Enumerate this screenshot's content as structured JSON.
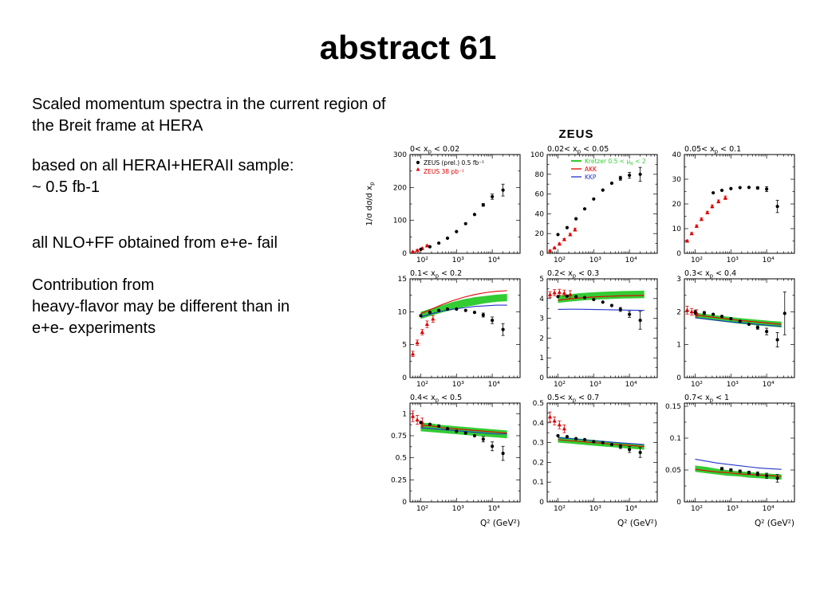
{
  "slide": {
    "title": "abstract 61",
    "blocks": [
      {
        "lines": [
          "Scaled momentum spectra in the current region of",
          "the Breit frame at HERA"
        ]
      },
      {
        "lines": [
          "based on all HERAI+HERAII sample:",
          "~ 0.5 fb-1"
        ]
      },
      {
        "lines": [
          "all NLO+FF obtained from e+e- fail"
        ]
      },
      {
        "lines": [
          "Contribution from",
          "heavy-flavor may be different than in",
          "e+e- experiments"
        ]
      }
    ]
  },
  "figure": {
    "title": "ZEUS",
    "ylabel": "1/σ dσ/d x_p",
    "xlabel": "Q² (GeV²)",
    "xlim": [
      50,
      60000
    ],
    "xticks": [
      100,
      1000,
      10000
    ],
    "xtick_labels": [
      "10²",
      "10³",
      "10⁴"
    ],
    "legend_data": [
      "ZEUS  (prel.) 0.5 fb⁻¹",
      "ZEUS 38 pb⁻¹"
    ],
    "legend_theory": [
      "Kretzer 0.5 < μ_R < 2",
      "AKK",
      "KKP"
    ],
    "colors": {
      "zeus": "#000000",
      "zeus38": "#dd0000",
      "kretzer": "#33cc33",
      "akk": "#e60000",
      "kkp": "#2233cc"
    }
  },
  "chart_data": [
    {
      "type": "scatter",
      "label": "0< x_p < 0.02",
      "ylim": [
        0,
        300
      ],
      "yticks": [
        0,
        100,
        200,
        300
      ],
      "legend": "data",
      "series": {
        "zeus_prel": {
          "x": [
            100,
            180,
            320,
            560,
            1000,
            1800,
            3200,
            5600,
            10000,
            20000
          ],
          "y": [
            12,
            20,
            31,
            46,
            66,
            90,
            118,
            147,
            172,
            192
          ],
          "e": [
            0,
            0,
            0,
            0,
            0,
            0,
            0,
            4,
            8,
            18
          ]
        },
        "zeus_38": {
          "x": [
            60,
            80,
            110,
            150
          ],
          "y": [
            5,
            9,
            15,
            23
          ],
          "e": [
            1,
            1.5,
            2,
            2.5
          ]
        }
      }
    },
    {
      "type": "scatter",
      "label": "0.02< x_p < 0.05",
      "ylim": [
        0,
        100
      ],
      "yticks": [
        0,
        20,
        40,
        60,
        80,
        100
      ],
      "legend": "theory",
      "series": {
        "zeus_prel": {
          "x": [
            100,
            180,
            320,
            560,
            1000,
            1800,
            3200,
            5600,
            10000,
            20000
          ],
          "y": [
            19,
            26,
            35,
            45,
            55,
            64,
            71,
            76,
            79,
            80
          ],
          "e": [
            0,
            0,
            0,
            0,
            0,
            0,
            0,
            2,
            3,
            7
          ]
        },
        "zeus_38": {
          "x": [
            60,
            80,
            110,
            150,
            220,
            300
          ],
          "y": [
            2.5,
            5.5,
            9.5,
            14,
            19,
            24
          ],
          "e": [
            0.8,
            0.8,
            1,
            1,
            1.2,
            1.5
          ]
        }
      }
    },
    {
      "type": "scatter",
      "label": "0.05< x_p < 0.1",
      "ylim": [
        0,
        40
      ],
      "yticks": [
        0,
        10,
        20,
        30,
        40
      ],
      "legend": null,
      "series": {
        "zeus_prel": {
          "x": [
            320,
            560,
            1000,
            1800,
            3200,
            5600,
            10000,
            20000
          ],
          "y": [
            24.5,
            25.5,
            26.2,
            26.6,
            26.7,
            26.5,
            26,
            19
          ],
          "e": [
            0,
            0,
            0,
            0,
            0,
            0.5,
            1,
            2.5
          ]
        },
        "zeus_38": {
          "x": [
            60,
            80,
            110,
            150,
            220,
            300,
            450,
            700
          ],
          "y": [
            5,
            8,
            11,
            13.8,
            16.5,
            19,
            21,
            22.5
          ],
          "e": [
            0.4,
            0.4,
            0.5,
            0.5,
            0.5,
            0.6,
            0.6,
            0.7
          ]
        }
      }
    },
    {
      "type": "scatter",
      "label": "0.1< x_p < 0.2",
      "ylim": [
        0,
        15
      ],
      "yticks": [
        0,
        5,
        10,
        15
      ],
      "legend": null,
      "series": {
        "zeus_prel": {
          "x": [
            100,
            180,
            320,
            560,
            1000,
            1800,
            3200,
            5600,
            10000,
            20000
          ],
          "y": [
            9.4,
            9.9,
            10.2,
            10.4,
            10.4,
            10.2,
            9.9,
            9.5,
            8.7,
            7.3
          ],
          "e": [
            0,
            0,
            0,
            0,
            0,
            0,
            0,
            0.3,
            0.5,
            0.9
          ]
        },
        "zeus_38": {
          "x": [
            60,
            80,
            110,
            150,
            220
          ],
          "y": [
            3.6,
            5.3,
            6.9,
            8.1,
            8.9
          ],
          "e": [
            0.4,
            0.4,
            0.4,
            0.5,
            0.5
          ]
        },
        "theory_x": [
          100,
          200,
          400,
          800,
          1600,
          3200,
          6400,
          13000,
          26000
        ],
        "kretzer_lo": [
          8.9,
          9.4,
          9.9,
          10.3,
          10.7,
          11.0,
          11.3,
          11.5,
          11.6
        ],
        "kretzer_hi": [
          10.0,
          10.5,
          11.0,
          11.5,
          11.9,
          12.2,
          12.4,
          12.6,
          12.7
        ],
        "akk": [
          9.7,
          10.4,
          11.1,
          11.7,
          12.2,
          12.6,
          12.9,
          13.1,
          13.2
        ],
        "kkp": [
          9.2,
          9.7,
          10.1,
          10.4,
          10.6,
          10.8,
          10.9,
          11.0,
          11.0
        ]
      }
    },
    {
      "type": "scatter",
      "label": "0.2< x_p < 0.3",
      "ylim": [
        0,
        5
      ],
      "yticks": [
        0,
        1,
        2,
        3,
        4,
        5
      ],
      "legend": null,
      "series": {
        "zeus_prel": {
          "x": [
            100,
            180,
            320,
            560,
            1000,
            1800,
            3200,
            5600,
            10000,
            20000
          ],
          "y": [
            4.1,
            4.12,
            4.1,
            4.05,
            3.95,
            3.82,
            3.65,
            3.45,
            3.2,
            2.9
          ],
          "e": [
            0,
            0,
            0,
            0,
            0,
            0,
            0,
            0.1,
            0.15,
            0.45
          ]
        },
        "zeus_38": {
          "x": [
            60,
            80,
            110,
            150,
            220
          ],
          "y": [
            4.2,
            4.3,
            4.32,
            4.28,
            4.2
          ],
          "e": [
            0.15,
            0.15,
            0.15,
            0.15,
            0.2
          ]
        },
        "theory_x": [
          100,
          200,
          400,
          800,
          1600,
          3200,
          6400,
          13000,
          26000
        ],
        "kretzer_lo": [
          3.78,
          3.84,
          3.89,
          3.93,
          3.96,
          3.98,
          4.0,
          4.01,
          4.02
        ],
        "kretzer_hi": [
          4.15,
          4.22,
          4.27,
          4.31,
          4.34,
          4.36,
          4.38,
          4.39,
          4.4
        ],
        "akk": [
          3.92,
          3.98,
          4.03,
          4.07,
          4.1,
          4.12,
          4.14,
          4.15,
          4.16
        ],
        "kkp": [
          3.45,
          3.46,
          3.46,
          3.45,
          3.44,
          3.43,
          3.42,
          3.41,
          3.4
        ]
      }
    },
    {
      "type": "scatter",
      "label": "0.3< x_p < 0.4",
      "ylim": [
        0,
        3
      ],
      "yticks": [
        0,
        1,
        2,
        3
      ],
      "legend": null,
      "series": {
        "zeus_prel": {
          "x": [
            100,
            180,
            320,
            560,
            1000,
            1800,
            3200,
            5600,
            10000,
            20000,
            32000
          ],
          "y": [
            1.98,
            1.96,
            1.92,
            1.86,
            1.79,
            1.71,
            1.62,
            1.52,
            1.4,
            1.15,
            1.95
          ],
          "e": [
            0.07,
            0.05,
            0,
            0,
            0,
            0,
            0,
            0.05,
            0.1,
            0.22,
            0.65
          ]
        },
        "zeus_38": {
          "x": [
            60,
            80,
            110
          ],
          "y": [
            2.05,
            2.0,
            1.96
          ],
          "e": [
            0.12,
            0.1,
            0.1
          ]
        },
        "theory_x": [
          100,
          200,
          400,
          800,
          1600,
          3200,
          6400,
          13000,
          26000
        ],
        "kretzer_lo": [
          1.8,
          1.76,
          1.72,
          1.68,
          1.64,
          1.61,
          1.58,
          1.55,
          1.52
        ],
        "kretzer_hi": [
          1.97,
          1.93,
          1.89,
          1.85,
          1.81,
          1.78,
          1.75,
          1.72,
          1.7
        ],
        "akk": [
          1.9,
          1.86,
          1.82,
          1.78,
          1.74,
          1.71,
          1.68,
          1.65,
          1.62
        ],
        "kkp": [
          1.82,
          1.78,
          1.74,
          1.7,
          1.67,
          1.64,
          1.61,
          1.58,
          1.56
        ]
      }
    },
    {
      "type": "scatter",
      "label": "0.4< x_p < 0.5",
      "ylim": [
        0,
        1.12
      ],
      "yticks": [
        0,
        0.25,
        0.5,
        0.75,
        1
      ],
      "legend": null,
      "series": {
        "zeus_prel": {
          "x": [
            100,
            180,
            320,
            560,
            1000,
            1800,
            3200,
            5600,
            10000,
            20000
          ],
          "y": [
            0.9,
            0.88,
            0.86,
            0.83,
            0.8,
            0.78,
            0.75,
            0.71,
            0.63,
            0.55
          ],
          "e": [
            0,
            0,
            0,
            0,
            0,
            0,
            0,
            0.03,
            0.05,
            0.08
          ]
        },
        "zeus_38": {
          "x": [
            60,
            80,
            110
          ],
          "y": [
            0.97,
            0.93,
            0.9
          ],
          "e": [
            0.06,
            0.05,
            0.05
          ]
        },
        "theory_x": [
          100,
          200,
          400,
          800,
          1600,
          3200,
          6400,
          13000,
          26000
        ],
        "kretzer_lo": [
          0.8,
          0.79,
          0.78,
          0.77,
          0.76,
          0.75,
          0.74,
          0.73,
          0.72
        ],
        "kretzer_hi": [
          0.9,
          0.89,
          0.87,
          0.86,
          0.85,
          0.84,
          0.83,
          0.82,
          0.81
        ],
        "akk": [
          0.87,
          0.86,
          0.84,
          0.83,
          0.82,
          0.81,
          0.8,
          0.79,
          0.78
        ],
        "kkp": [
          0.84,
          0.83,
          0.82,
          0.81,
          0.8,
          0.79,
          0.78,
          0.77,
          0.77
        ]
      }
    },
    {
      "type": "scatter",
      "label": "0.5< x_p < 0.7",
      "ylim": [
        0,
        0.5
      ],
      "yticks": [
        0,
        0.1,
        0.2,
        0.3,
        0.4,
        0.5
      ],
      "legend": null,
      "series": {
        "zeus_prel": {
          "x": [
            100,
            180,
            320,
            560,
            1000,
            1800,
            3200,
            5600,
            10000,
            20000
          ],
          "y": [
            0.335,
            0.33,
            0.32,
            0.315,
            0.305,
            0.3,
            0.29,
            0.28,
            0.265,
            0.25
          ],
          "e": [
            0,
            0,
            0,
            0,
            0,
            0,
            0,
            0.01,
            0.015,
            0.025
          ]
        },
        "zeus_38": {
          "x": [
            60,
            80,
            110,
            150
          ],
          "y": [
            0.43,
            0.41,
            0.39,
            0.37
          ],
          "e": [
            0.025,
            0.02,
            0.02,
            0.02
          ]
        },
        "theory_x": [
          100,
          200,
          400,
          800,
          1600,
          3200,
          6400,
          13000,
          26000
        ],
        "kretzer_lo": [
          0.3,
          0.296,
          0.291,
          0.286,
          0.281,
          0.277,
          0.272,
          0.268,
          0.264
        ],
        "kretzer_hi": [
          0.33,
          0.325,
          0.32,
          0.315,
          0.31,
          0.305,
          0.3,
          0.296,
          0.292
        ],
        "akk": [
          0.315,
          0.31,
          0.306,
          0.301,
          0.297,
          0.292,
          0.288,
          0.284,
          0.28
        ],
        "kkp": [
          0.325,
          0.321,
          0.316,
          0.311,
          0.307,
          0.302,
          0.298,
          0.294,
          0.29
        ]
      }
    },
    {
      "type": "scatter",
      "label": "0.7< x_p < 1",
      "ylim": [
        0,
        0.155
      ],
      "yticks": [
        0,
        0.05,
        0.1,
        0.15
      ],
      "legend": null,
      "series": {
        "zeus_prel": {
          "x": [
            560,
            1000,
            1800,
            3200,
            5600,
            10000,
            20000
          ],
          "y": [
            0.052,
            0.05,
            0.048,
            0.046,
            0.044,
            0.041,
            0.037
          ],
          "e": [
            0.002,
            0.002,
            0.002,
            0.002,
            0.003,
            0.004,
            0.006
          ]
        },
        "theory_x": [
          100,
          200,
          400,
          800,
          1600,
          3200,
          6400,
          13000,
          26000
        ],
        "kretzer_lo": [
          0.047,
          0.045,
          0.043,
          0.041,
          0.04,
          0.038,
          0.037,
          0.036,
          0.035
        ],
        "kretzer_hi": [
          0.057,
          0.055,
          0.052,
          0.05,
          0.048,
          0.047,
          0.045,
          0.044,
          0.043
        ],
        "akk": [
          0.051,
          0.049,
          0.047,
          0.046,
          0.044,
          0.043,
          0.042,
          0.041,
          0.04
        ],
        "kkp": [
          0.067,
          0.064,
          0.061,
          0.059,
          0.057,
          0.055,
          0.053,
          0.052,
          0.051
        ]
      }
    }
  ]
}
